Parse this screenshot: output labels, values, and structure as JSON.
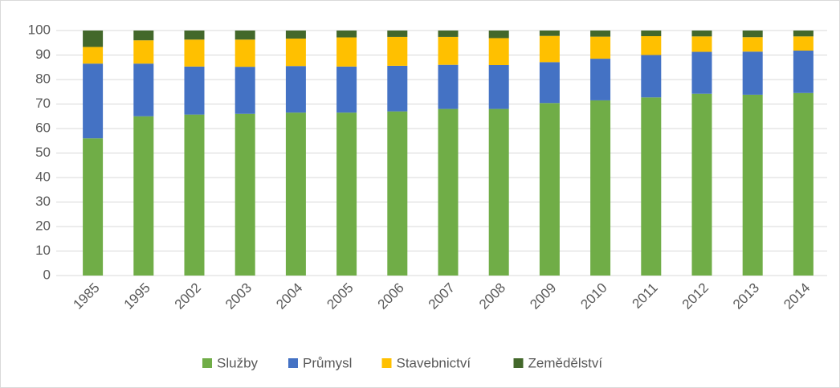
{
  "chart_data": {
    "type": "stacked_bar",
    "categories": [
      "1985",
      "1995",
      "2002",
      "2003",
      "2004",
      "2005",
      "2006",
      "2007",
      "2008",
      "2009",
      "2010",
      "2011",
      "2012",
      "2013",
      "2014"
    ],
    "series": [
      {
        "name": "Služby",
        "color": "#70ad47",
        "values": [
          56,
          65,
          65.7,
          66,
          66.5,
          66.5,
          67,
          68,
          68,
          70.4,
          71.5,
          72.7,
          74.2,
          73.8,
          74.5
        ]
      },
      {
        "name": "Průmysl",
        "color": "#4472c4",
        "values": [
          30.5,
          21.5,
          19.6,
          19.2,
          19,
          18.8,
          18.6,
          18,
          17.9,
          16.7,
          17,
          17.3,
          17.1,
          17.6,
          17.3
        ]
      },
      {
        "name": "Stavebnictví",
        "color": "#ffc000",
        "values": [
          6.8,
          9.5,
          11,
          11.1,
          11.2,
          11.9,
          11.8,
          11.4,
          11,
          10.7,
          9,
          7.7,
          6.3,
          5.9,
          5.8
        ]
      },
      {
        "name": "Zemědělství",
        "color": "#43682b",
        "values": [
          6.7,
          4,
          3.7,
          3.7,
          3.3,
          2.8,
          2.6,
          2.6,
          3.1,
          2.2,
          2.5,
          2.3,
          2.4,
          2.7,
          2.4
        ]
      }
    ],
    "ylim": [
      0,
      100
    ],
    "yticks": [
      0,
      10,
      20,
      30,
      40,
      50,
      60,
      70,
      80,
      90,
      100
    ],
    "grid": true,
    "legend": "bottom"
  }
}
